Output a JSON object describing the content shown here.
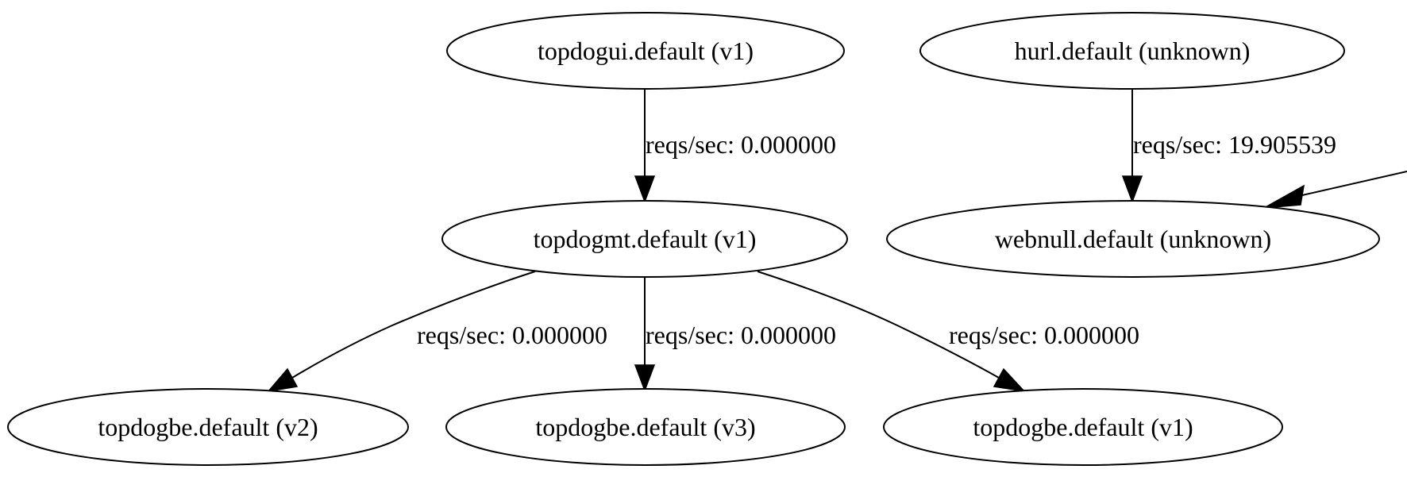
{
  "nodes": {
    "topdogui": {
      "label": "topdogui.default (v1)"
    },
    "hurl": {
      "label": "hurl.default (unknown)"
    },
    "topdogmt": {
      "label": "topdogmt.default (v1)"
    },
    "webnull": {
      "label": "webnull.default (unknown)"
    },
    "topdogbe_v2": {
      "label": "topdogbe.default (v2)"
    },
    "topdogbe_v3": {
      "label": "topdogbe.default (v3)"
    },
    "topdogbe_v1": {
      "label": "topdogbe.default (v1)"
    }
  },
  "edges": {
    "topdogui_to_topdogmt": {
      "from": "topdogui",
      "to": "topdogmt",
      "label": "reqs/sec: 0.000000"
    },
    "hurl_to_webnull": {
      "from": "hurl",
      "to": "webnull",
      "label": "reqs/sec: 19.905539"
    },
    "offscreen_to_webnull": {
      "from": "",
      "to": "webnull",
      "label": ""
    },
    "topdogmt_to_topdogbe_v2": {
      "from": "topdogmt",
      "to": "topdogbe_v2",
      "label": "reqs/sec: 0.000000"
    },
    "topdogmt_to_topdogbe_v3": {
      "from": "topdogmt",
      "to": "topdogbe_v3",
      "label": "reqs/sec: 0.000000"
    },
    "topdogmt_to_topdogbe_v1": {
      "from": "topdogmt",
      "to": "topdogbe_v1",
      "label": "reqs/sec: 0.000000"
    }
  }
}
